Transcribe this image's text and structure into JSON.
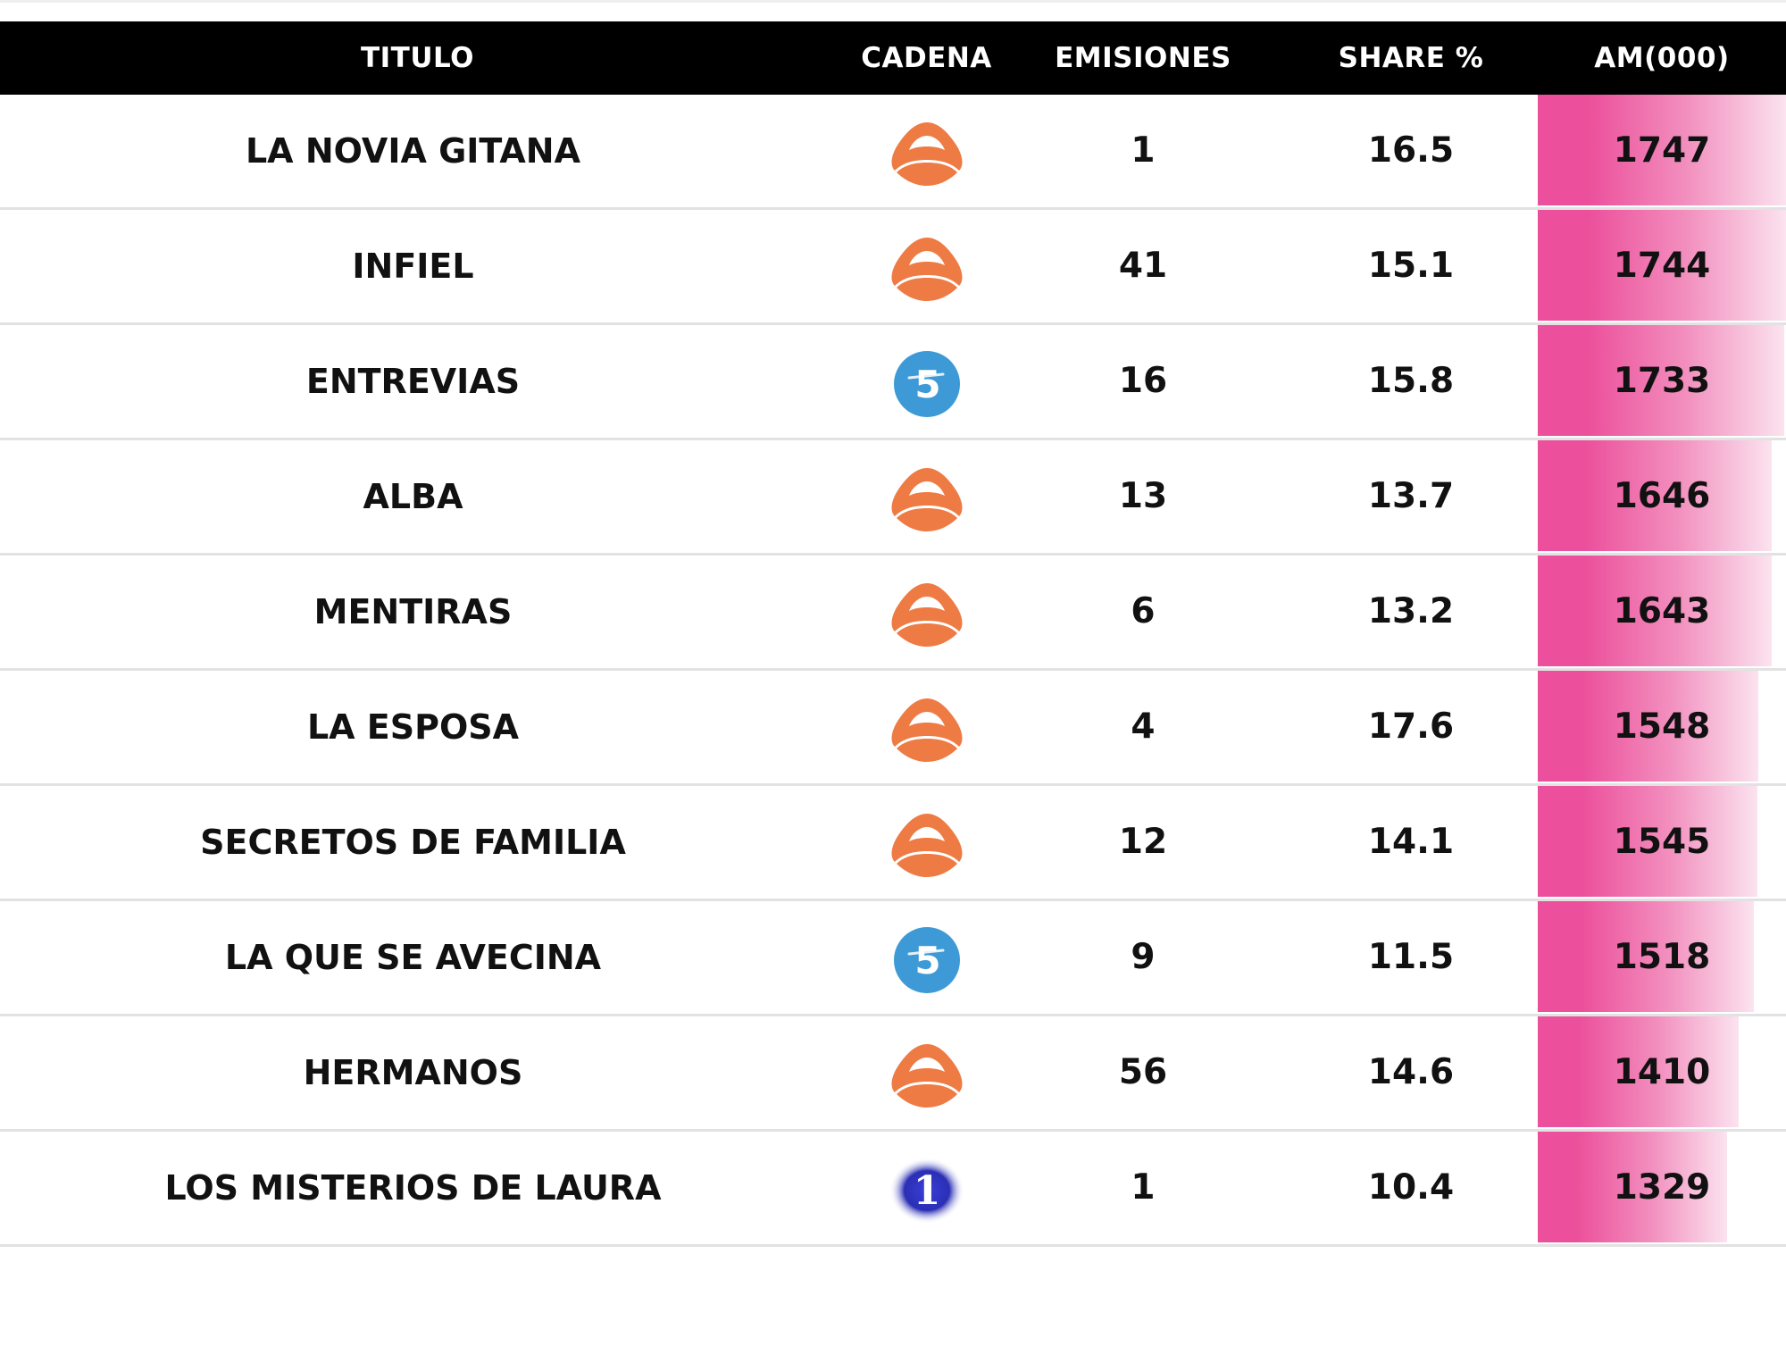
{
  "chart_data": {
    "type": "table",
    "columns": [
      "TITULO",
      "CADENA",
      "EMISIONES",
      "SHARE %",
      "AM(000)"
    ],
    "rows": [
      {
        "titulo": "LA NOVIA GITANA",
        "cadena_icon": "antena3-logo-icon",
        "emisiones": "1",
        "share": "16.5",
        "am": "1747"
      },
      {
        "titulo": "INFIEL",
        "cadena_icon": "antena3-logo-icon",
        "emisiones": "41",
        "share": "15.1",
        "am": "1744"
      },
      {
        "titulo": "ENTREVIAS",
        "cadena_icon": "telecinco-logo-icon",
        "emisiones": "16",
        "share": "15.8",
        "am": "1733"
      },
      {
        "titulo": "ALBA",
        "cadena_icon": "antena3-logo-icon",
        "emisiones": "13",
        "share": "13.7",
        "am": "1646"
      },
      {
        "titulo": "MENTIRAS",
        "cadena_icon": "antena3-logo-icon",
        "emisiones": "6",
        "share": "13.2",
        "am": "1643"
      },
      {
        "titulo": "LA ESPOSA",
        "cadena_icon": "antena3-logo-icon",
        "emisiones": "4",
        "share": "17.6",
        "am": "1548"
      },
      {
        "titulo": "SECRETOS DE FAMILIA",
        "cadena_icon": "antena3-logo-icon",
        "emisiones": "12",
        "share": "14.1",
        "am": "1545"
      },
      {
        "titulo": "LA QUE SE AVECINA",
        "cadena_icon": "telecinco-logo-icon",
        "emisiones": "9",
        "share": "11.5",
        "am": "1518"
      },
      {
        "titulo": "HERMANOS",
        "cadena_icon": "antena3-logo-icon",
        "emisiones": "56",
        "share": "14.6",
        "am": "1410"
      },
      {
        "titulo": "LOS MISTERIOS DE LAURA",
        "cadena_icon": "la1-logo-icon",
        "emisiones": "1",
        "share": "10.4",
        "am": "1329"
      }
    ],
    "am_bar_range": [
      0,
      1747
    ],
    "colors": {
      "header_bg": "#000000",
      "header_text": "#ffffff",
      "bar_strong": "#ec4f9b",
      "bar_light": "#fbe3ef",
      "antena3": "#ee7b44",
      "telecinco": "#3d9ad6",
      "la1": "#2a2fb4"
    }
  }
}
